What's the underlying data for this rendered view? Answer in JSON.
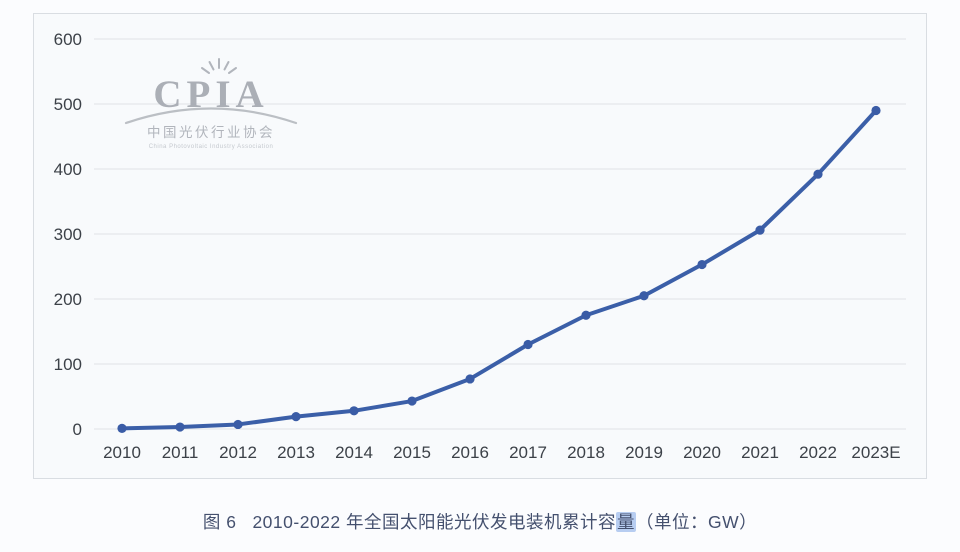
{
  "chart_data": {
    "type": "line",
    "title": "2010-2022 年全国太阳能光伏发电装机累计容量",
    "unit": "GW",
    "categories": [
      "2010",
      "2011",
      "2012",
      "2013",
      "2014",
      "2015",
      "2016",
      "2017",
      "2018",
      "2019",
      "2020",
      "2021",
      "2022",
      "2023E"
    ],
    "values": [
      1,
      3,
      7,
      19,
      28,
      43,
      77,
      130,
      175,
      205,
      253,
      306,
      392,
      490
    ],
    "ylim": [
      0,
      600
    ],
    "yticks": [
      0,
      100,
      200,
      300,
      400,
      500,
      600
    ],
    "grid": true,
    "legend": "none",
    "xlabel": "",
    "ylabel": ""
  },
  "watermark": {
    "acronym": "CPIA",
    "name_cn": "中国光伏行业协会",
    "name_en": "China Photovoltaic Industry Association"
  },
  "caption": {
    "figure_label": "图 6",
    "text_before_highlight": "2010-2022 年全国太阳能光伏发电装机累计容",
    "highlighted_char": "量",
    "text_after_highlight": "（单位：GW）"
  },
  "colors": {
    "line": "#3b5fa8",
    "marker": "#3a5ca6",
    "grid": "#e4e7ea",
    "axis_text": "#3c4148",
    "caption_text": "#44506e",
    "highlight_bg": "#b7cdf1",
    "watermark_gray": "#a7abb3",
    "panel_bg": "#f8fafc",
    "panel_border": "#d9dde2",
    "page_bg": "#fbfcfe"
  }
}
